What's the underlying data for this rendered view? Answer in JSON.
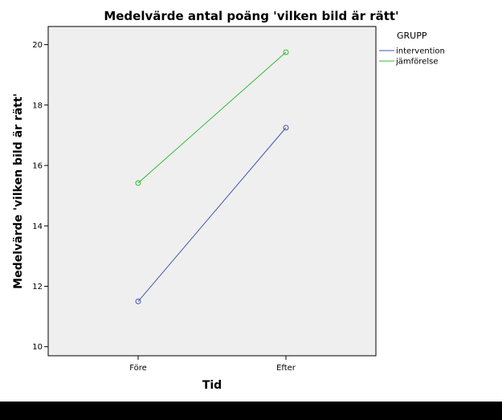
{
  "chart_data": {
    "type": "line",
    "title": "Medelvärde antal poäng 'vilken bild är rätt'",
    "xlabel": "Tid",
    "ylabel": "Medelvärde 'vilken bild är rätt'",
    "categories": [
      "Före",
      "Efter"
    ],
    "ylim": [
      9.7,
      20.6
    ],
    "yticks": [
      10,
      12,
      14,
      16,
      18,
      20
    ],
    "grid": false,
    "legend_title": "GRUPP",
    "legend_position": "right",
    "series": [
      {
        "name": "intervention",
        "values": [
          11.5,
          17.25
        ],
        "color": "#3f56b4"
      },
      {
        "name": "jämförelse",
        "values": [
          15.42,
          19.75
        ],
        "color": "#2ebd2e"
      }
    ]
  },
  "colors": {
    "plot_background": "#efefef",
    "axis": "#000000"
  }
}
